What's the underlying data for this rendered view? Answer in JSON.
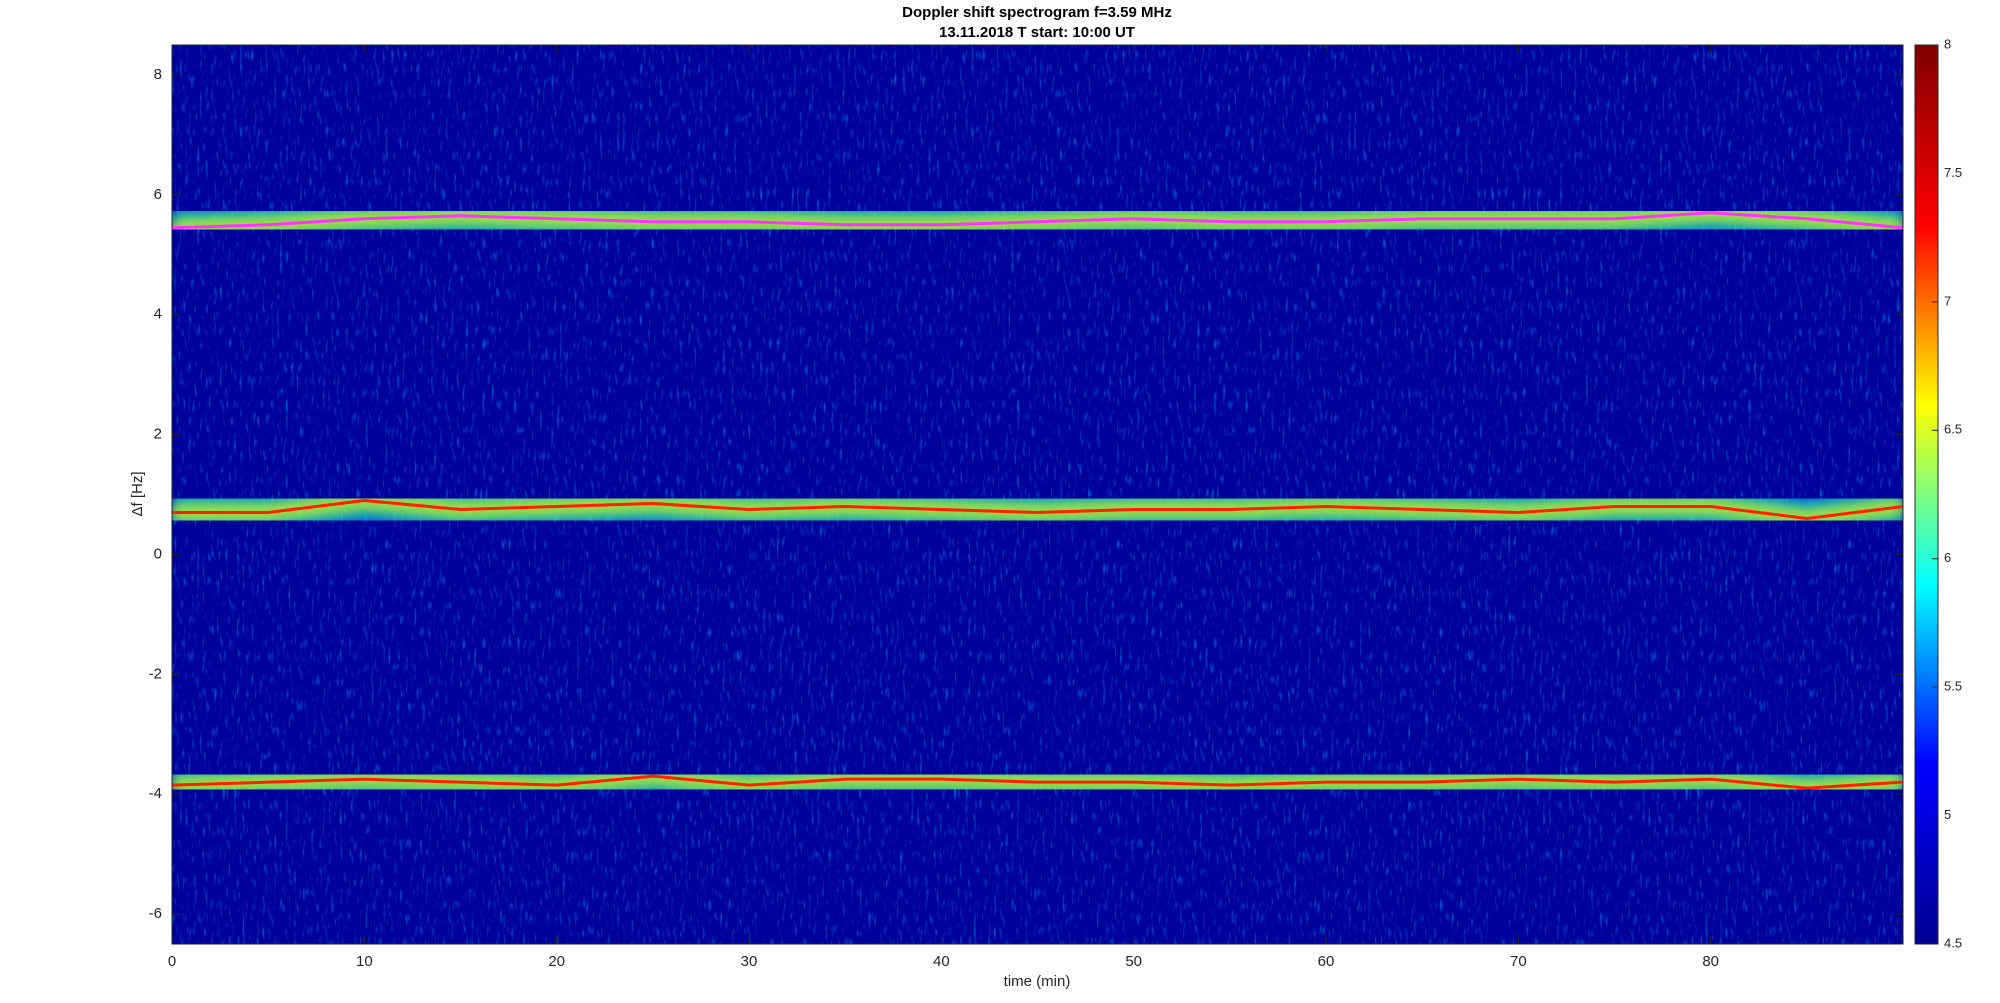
{
  "chart_data": {
    "type": "spectrogram",
    "title": "Doppler shift spectrogram f=3.59 MHz",
    "subtitle": "13.11.2018   T start: 10:00 UT",
    "x_label": "time (min)",
    "y_label": "Δf [Hz]",
    "xlim": [
      0,
      90
    ],
    "xticks": [
      0,
      10,
      20,
      30,
      40,
      50,
      60,
      70,
      80
    ],
    "ylim": [
      -6.5,
      8.5
    ],
    "yticks": [
      -6,
      -4,
      -2,
      0,
      2,
      4,
      6,
      8
    ],
    "colormap": "jet",
    "clim": [
      4.5,
      8
    ],
    "cticks": [
      4.5,
      5,
      5.5,
      6,
      6.5,
      7,
      7.5,
      8
    ],
    "x": [
      0,
      5,
      10,
      15,
      20,
      25,
      30,
      35,
      40,
      45,
      50,
      55,
      60,
      65,
      70,
      75,
      80,
      85,
      90
    ],
    "series": [
      {
        "color": "#ff33ff",
        "values": [
          5.45,
          5.5,
          5.6,
          5.65,
          5.6,
          5.55,
          5.55,
          5.5,
          5.5,
          5.55,
          5.6,
          5.55,
          5.55,
          5.6,
          5.6,
          5.6,
          5.7,
          5.6,
          5.45
        ]
      },
      {
        "color": "#ff2000",
        "values": [
          0.7,
          0.7,
          0.9,
          0.75,
          0.8,
          0.85,
          0.75,
          0.8,
          0.75,
          0.7,
          0.75,
          0.75,
          0.8,
          0.75,
          0.7,
          0.8,
          0.8,
          0.6,
          0.8
        ]
      },
      {
        "color": "#ff2000",
        "values": [
          -3.85,
          -3.8,
          -3.75,
          -3.8,
          -3.85,
          -3.7,
          -3.85,
          -3.75,
          -3.75,
          -3.8,
          -3.8,
          -3.85,
          -3.8,
          -3.8,
          -3.75,
          -3.8,
          -3.75,
          -3.9,
          -3.8
        ]
      }
    ]
  }
}
